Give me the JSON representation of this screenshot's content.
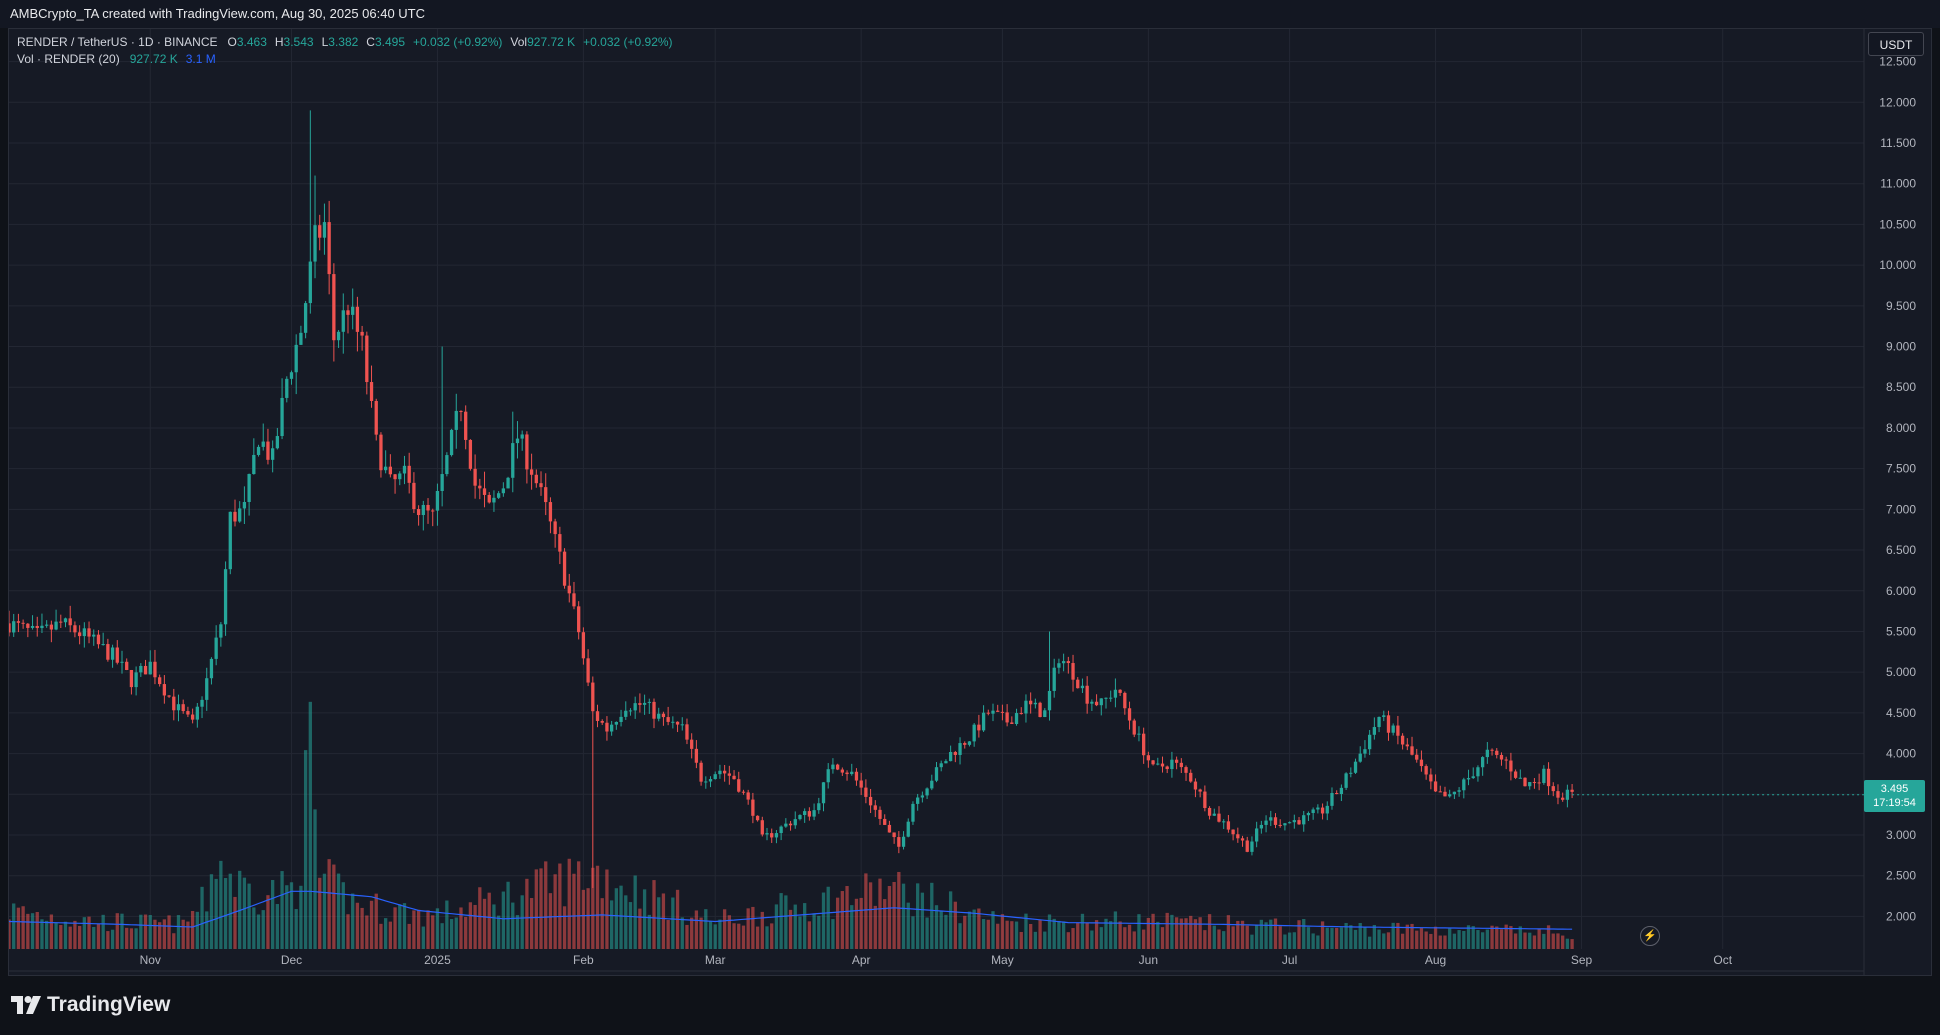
{
  "header": {
    "caption": "AMBCrypto_TA created with TradingView.com, Aug 30, 2025 06:40 UTC"
  },
  "legend": {
    "symbol": "RENDER / TetherUS · 1D · BINANCE",
    "open_label": "O",
    "open": "3.463",
    "high_label": "H",
    "high": "3.543",
    "low_label": "L",
    "low": "3.382",
    "close_label": "C",
    "close": "3.495",
    "change": "+0.032 (+0.92%)",
    "vol_label": "Vol",
    "vol": "927.72 K",
    "vol_change": "+0.032 (+0.92%)",
    "vol_indicator": "Vol · RENDER (20)",
    "vol_indicator_value": "927.72 K",
    "vol_ma_value": "3.1 M"
  },
  "currency": "USDT",
  "last_price": {
    "price": "3.495",
    "countdown": "17:19:54"
  },
  "brand": {
    "name": "TradingView"
  },
  "icons": {
    "logo": "tradingview-logo-icon",
    "bolt": "lightning-bolt-icon"
  },
  "colors": {
    "up": "#26a69a",
    "down": "#ef5350",
    "volume_ma": "#2962ff",
    "background": "#161a25",
    "grid": "#232733"
  },
  "chart_data": {
    "type": "candlestick",
    "symbol": "RENDER / TetherUS",
    "interval": "1D",
    "exchange": "BINANCE",
    "quote": "USDT",
    "y_ticks": [
      "2.000",
      "2.500",
      "3.000",
      "3.500",
      "4.000",
      "4.500",
      "5.000",
      "5.500",
      "6.000",
      "6.500",
      "7.000",
      "7.500",
      "8.000",
      "8.500",
      "9.000",
      "9.500",
      "10.000",
      "10.500",
      "11.000",
      "11.500",
      "12.000",
      "12.500"
    ],
    "ylim": [
      1.6,
      12.9
    ],
    "x_ticks": [
      {
        "date": "2024-11-01",
        "label": "Nov"
      },
      {
        "date": "2024-12-01",
        "label": "Dec"
      },
      {
        "date": "2025-01-01",
        "label": "2025"
      },
      {
        "date": "2025-02-01",
        "label": "Feb"
      },
      {
        "date": "2025-03-01",
        "label": "Mar"
      },
      {
        "date": "2025-04-01",
        "label": "Apr"
      },
      {
        "date": "2025-05-01",
        "label": "May"
      },
      {
        "date": "2025-06-01",
        "label": "Jun"
      },
      {
        "date": "2025-07-01",
        "label": "Jul"
      },
      {
        "date": "2025-08-01",
        "label": "Aug"
      },
      {
        "date": "2025-09-01",
        "label": "Sep"
      },
      {
        "date": "2025-10-01",
        "label": "Oct"
      }
    ],
    "x_range": [
      "2024-10-02",
      "2025-10-31"
    ],
    "close_path": [
      [
        "2024-10-02",
        5.6
      ],
      [
        "2024-10-08",
        5.45
      ],
      [
        "2024-10-13",
        5.6
      ],
      [
        "2024-10-18",
        5.45
      ],
      [
        "2024-10-24",
        5.2
      ],
      [
        "2024-10-28",
        4.9
      ],
      [
        "2024-11-01",
        5.1
      ],
      [
        "2024-11-06",
        4.6
      ],
      [
        "2024-11-10",
        4.35
      ],
      [
        "2024-11-13",
        4.9
      ],
      [
        "2024-11-16",
        5.6
      ],
      [
        "2024-11-18",
        6.9
      ],
      [
        "2024-11-21",
        7.0
      ],
      [
        "2024-11-24",
        7.9
      ],
      [
        "2024-11-27",
        7.6
      ],
      [
        "2024-11-30",
        8.6
      ],
      [
        "2024-12-03",
        9.2
      ],
      [
        "2024-12-06",
        10.3
      ],
      [
        "2024-12-08",
        10.5
      ],
      [
        "2024-12-10",
        9.1
      ],
      [
        "2024-12-13",
        9.5
      ],
      [
        "2024-12-16",
        9.0
      ],
      [
        "2024-12-19",
        7.8
      ],
      [
        "2024-12-22",
        7.3
      ],
      [
        "2024-12-25",
        7.4
      ],
      [
        "2024-12-28",
        7.0
      ],
      [
        "2024-12-31",
        6.9
      ],
      [
        "2025-01-03",
        7.6
      ],
      [
        "2025-01-06",
        8.3
      ],
      [
        "2025-01-09",
        7.3
      ],
      [
        "2025-01-12",
        7.0
      ],
      [
        "2025-01-15",
        7.3
      ],
      [
        "2025-01-18",
        7.9
      ],
      [
        "2025-01-21",
        7.5
      ],
      [
        "2025-01-24",
        7.0
      ],
      [
        "2025-01-27",
        6.4
      ],
      [
        "2025-01-31",
        5.5
      ],
      [
        "2025-02-03",
        4.5
      ],
      [
        "2025-02-06",
        4.3
      ],
      [
        "2025-02-10",
        4.6
      ],
      [
        "2025-02-14",
        4.6
      ],
      [
        "2025-02-18",
        4.4
      ],
      [
        "2025-02-22",
        4.3
      ],
      [
        "2025-02-26",
        3.7
      ],
      [
        "2025-03-02",
        3.8
      ],
      [
        "2025-03-05",
        3.7
      ],
      [
        "2025-03-09",
        3.3
      ],
      [
        "2025-03-11",
        2.95
      ],
      [
        "2025-03-14",
        3.05
      ],
      [
        "2025-03-18",
        3.2
      ],
      [
        "2025-03-22",
        3.3
      ],
      [
        "2025-03-26",
        3.9
      ],
      [
        "2025-03-30",
        3.75
      ],
      [
        "2025-04-03",
        3.4
      ],
      [
        "2025-04-07",
        3.0
      ],
      [
        "2025-04-09",
        2.85
      ],
      [
        "2025-04-12",
        3.4
      ],
      [
        "2025-04-16",
        3.7
      ],
      [
        "2025-04-20",
        4.0
      ],
      [
        "2025-04-24",
        4.2
      ],
      [
        "2025-04-28",
        4.5
      ],
      [
        "2025-05-02",
        4.4
      ],
      [
        "2025-05-06",
        4.6
      ],
      [
        "2025-05-10",
        4.5
      ],
      [
        "2025-05-13",
        5.2
      ],
      [
        "2025-05-16",
        5.0
      ],
      [
        "2025-05-19",
        4.7
      ],
      [
        "2025-05-22",
        4.6
      ],
      [
        "2025-05-25",
        4.8
      ],
      [
        "2025-05-29",
        4.3
      ],
      [
        "2025-06-02",
        3.8
      ],
      [
        "2025-06-06",
        3.9
      ],
      [
        "2025-06-10",
        3.7
      ],
      [
        "2025-06-14",
        3.3
      ],
      [
        "2025-06-18",
        3.1
      ],
      [
        "2025-06-22",
        2.85
      ],
      [
        "2025-06-26",
        3.2
      ],
      [
        "2025-06-30",
        3.15
      ],
      [
        "2025-07-04",
        3.2
      ],
      [
        "2025-07-08",
        3.3
      ],
      [
        "2025-07-12",
        3.6
      ],
      [
        "2025-07-16",
        4.0
      ],
      [
        "2025-07-20",
        4.45
      ],
      [
        "2025-07-24",
        4.2
      ],
      [
        "2025-07-28",
        3.9
      ],
      [
        "2025-08-01",
        3.5
      ],
      [
        "2025-08-04",
        3.45
      ],
      [
        "2025-08-08",
        3.7
      ],
      [
        "2025-08-12",
        4.0
      ],
      [
        "2025-08-16",
        3.9
      ],
      [
        "2025-08-20",
        3.6
      ],
      [
        "2025-08-24",
        3.75
      ],
      [
        "2025-08-27",
        3.5
      ],
      [
        "2025-08-30",
        3.495
      ]
    ],
    "notable_wicks": [
      [
        "2024-12-05",
        11.9
      ],
      [
        "2024-12-06",
        11.1
      ],
      [
        "2025-01-02",
        9.0
      ],
      [
        "2025-01-17",
        8.2
      ],
      [
        "2025-02-03",
        2.35
      ],
      [
        "2025-05-11",
        5.5
      ]
    ],
    "volume_path": [
      [
        "2024-10-02",
        0.7
      ],
      [
        "2024-10-20",
        0.5
      ],
      [
        "2024-11-08",
        0.45
      ],
      [
        "2024-11-13",
        0.9
      ],
      [
        "2024-11-15",
        1.7
      ],
      [
        "2024-11-19",
        1.2
      ],
      [
        "2024-11-25",
        1.0
      ],
      [
        "2024-12-02",
        1.1
      ],
      [
        "2024-12-05",
        3.5
      ],
      [
        "2024-12-07",
        1.3
      ],
      [
        "2024-12-15",
        0.8
      ],
      [
        "2025-01-01",
        0.6
      ],
      [
        "2025-02-03",
        1.4
      ],
      [
        "2025-03-01",
        0.5
      ],
      [
        "2025-04-07",
        1.1
      ],
      [
        "2025-05-01",
        0.5
      ],
      [
        "2025-06-01",
        0.5
      ],
      [
        "2025-07-01",
        0.4
      ],
      [
        "2025-08-01",
        0.35
      ],
      [
        "2025-08-30",
        0.3
      ]
    ],
    "volume_ma_path": [
      [
        "2024-10-02",
        0.5
      ],
      [
        "2024-10-25",
        0.45
      ],
      [
        "2024-11-10",
        0.4
      ],
      [
        "2024-11-20",
        0.7
      ],
      [
        "2024-12-01",
        1.05
      ],
      [
        "2024-12-05",
        1.05
      ],
      [
        "2024-12-18",
        0.95
      ],
      [
        "2024-12-28",
        0.7
      ],
      [
        "2025-01-15",
        0.55
      ],
      [
        "2025-02-05",
        0.62
      ],
      [
        "2025-03-01",
        0.5
      ],
      [
        "2025-04-08",
        0.75
      ],
      [
        "2025-04-25",
        0.65
      ],
      [
        "2025-05-15",
        0.48
      ],
      [
        "2025-06-15",
        0.45
      ],
      [
        "2025-07-15",
        0.4
      ],
      [
        "2025-08-30",
        0.36
      ]
    ]
  }
}
